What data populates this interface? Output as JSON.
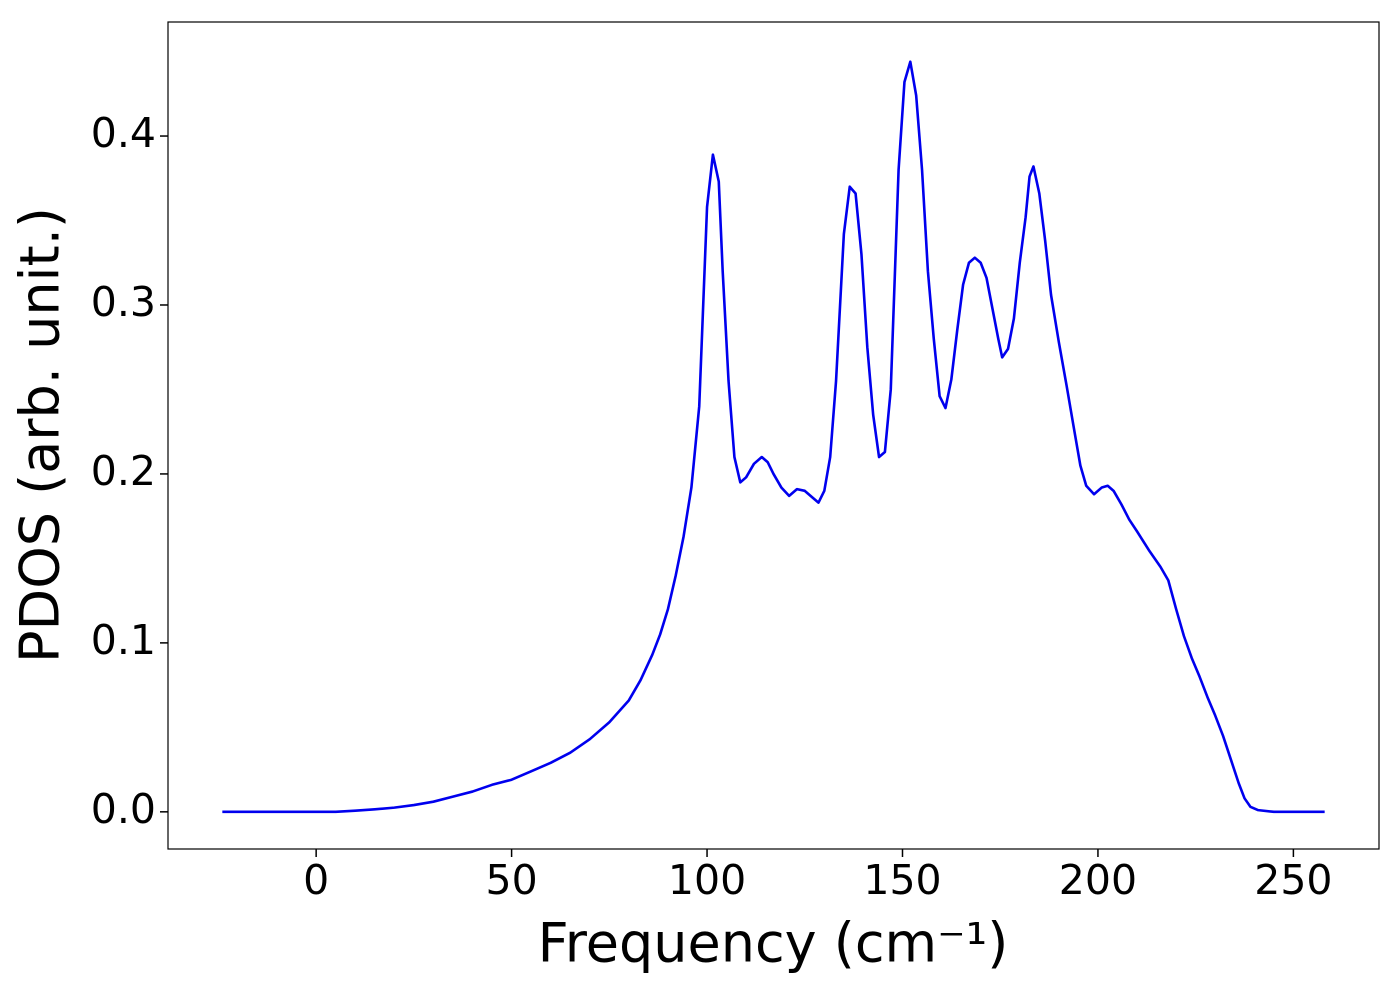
{
  "chart_data": {
    "type": "line",
    "xlabel": "Frequency (cm⁻¹)",
    "ylabel": "PDOS (arb. unit.)",
    "xlim": [
      -37.9,
      271.9
    ],
    "ylim": [
      -0.022,
      0.4675
    ],
    "xticks": [
      0,
      50,
      100,
      150,
      200,
      250
    ],
    "yticks": [
      {
        "value": 0,
        "label": "0.0"
      },
      0.1,
      0.2,
      0.3,
      0.4
    ],
    "grid": false,
    "x": [
      -24,
      0,
      5,
      10,
      15,
      20,
      25,
      30,
      35,
      40,
      45,
      50,
      55,
      60,
      65,
      70,
      75,
      80,
      83,
      86,
      88,
      90,
      92,
      94,
      96,
      98,
      100,
      101.5,
      103,
      104,
      105.5,
      107,
      108.5,
      110,
      112,
      114,
      115.5,
      117,
      119,
      121,
      123,
      125,
      127,
      128.5,
      130,
      131.5,
      133,
      135,
      136.5,
      138,
      139.5,
      141,
      142.5,
      144,
      145.5,
      147,
      149,
      150.5,
      152,
      153.5,
      155,
      156.5,
      158,
      159.5,
      161,
      162.5,
      164,
      165.5,
      167,
      168.5,
      170,
      171.5,
      173,
      174.5,
      175.5,
      177,
      178.5,
      180,
      181.5,
      182.5,
      183.5,
      185,
      186.5,
      188,
      190,
      192,
      194,
      195.5,
      197,
      199,
      201,
      202.5,
      204,
      206,
      208,
      210,
      213,
      216,
      218,
      220,
      222,
      224,
      226,
      228,
      230,
      232,
      234,
      236,
      237.5,
      239,
      241,
      245,
      258
    ],
    "series": [
      {
        "name": "PDOS",
        "color": "#0000ee",
        "values": [
          0,
          0,
          0,
          0.0007,
          0.0015,
          0.0025,
          0.004,
          0.006,
          0.009,
          0.012,
          0.016,
          0.019,
          0.024,
          0.029,
          0.035,
          0.043,
          0.053,
          0.066,
          0.078,
          0.093,
          0.105,
          0.12,
          0.14,
          0.163,
          0.192,
          0.24,
          0.358,
          0.389,
          0.373,
          0.32,
          0.255,
          0.21,
          0.195,
          0.198,
          0.206,
          0.21,
          0.207,
          0.2,
          0.192,
          0.187,
          0.191,
          0.19,
          0.186,
          0.183,
          0.19,
          0.21,
          0.255,
          0.342,
          0.37,
          0.366,
          0.33,
          0.275,
          0.235,
          0.21,
          0.213,
          0.25,
          0.38,
          0.432,
          0.444,
          0.424,
          0.38,
          0.32,
          0.28,
          0.246,
          0.239,
          0.256,
          0.285,
          0.312,
          0.325,
          0.328,
          0.325,
          0.316,
          0.298,
          0.28,
          0.269,
          0.274,
          0.292,
          0.325,
          0.352,
          0.376,
          0.382,
          0.366,
          0.338,
          0.306,
          0.278,
          0.252,
          0.225,
          0.205,
          0.193,
          0.188,
          0.192,
          0.193,
          0.19,
          0.182,
          0.173,
          0.166,
          0.155,
          0.145,
          0.137,
          0.12,
          0.104,
          0.091,
          0.08,
          0.068,
          0.057,
          0.045,
          0.031,
          0.017,
          0.008,
          0.003,
          0.001,
          0,
          0
        ]
      }
    ]
  }
}
